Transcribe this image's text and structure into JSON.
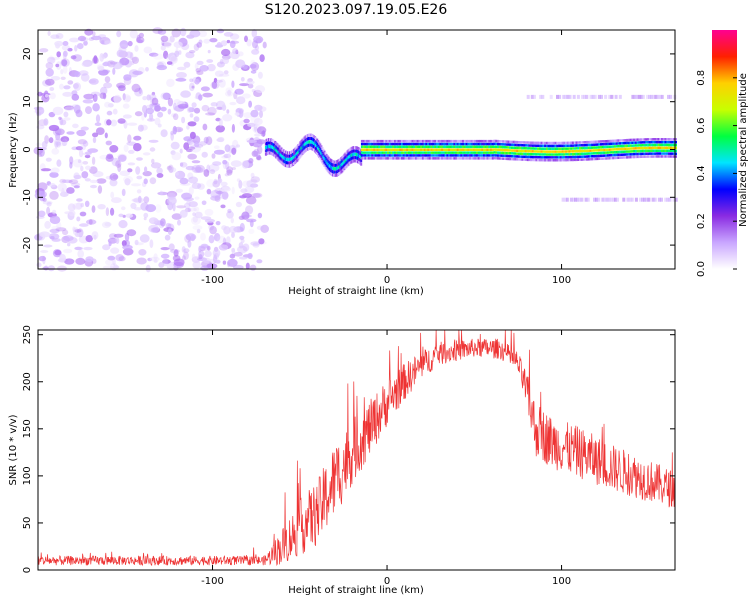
{
  "title": "S120.2023.097.19.05.E26",
  "chart_data": [
    {
      "type": "heatmap",
      "xlabel": "Height of straight line (km)",
      "ylabel": "Frequency (Hz)",
      "xlim": [
        -200,
        165
      ],
      "ylim": [
        -25,
        25
      ],
      "x_ticks": [
        -100,
        0,
        100
      ],
      "y_ticks": [
        -20,
        -10,
        0,
        10,
        20
      ],
      "colorbar": {
        "label": "Normalized spectral amplitude",
        "range": [
          0,
          1
        ],
        "ticks": [
          "0.0",
          "0.2",
          "0.4",
          "0.6",
          "0.8"
        ],
        "colormap": [
          "#ffffff",
          "#c9a6ff",
          "#8a2be2",
          "#0000ff",
          "#00e5ff",
          "#00ff40",
          "#c8ff00",
          "#ffd000",
          "#ff2000",
          "#ff0090"
        ]
      },
      "regions": [
        {
          "name": "noise",
          "x_range": [
            -200,
            -70
          ],
          "y_range": [
            -25,
            25
          ],
          "amplitude": 0.1
        },
        {
          "name": "signal-transition",
          "x_range": [
            -70,
            -15
          ],
          "freq_center": -1.5,
          "amplitude": 0.45
        },
        {
          "name": "signal-line",
          "x_range": [
            -15,
            165
          ],
          "freq_center": 0,
          "amplitude": 0.75
        },
        {
          "name": "harmonic-upper",
          "x_range": [
            80,
            165
          ],
          "freq_center": 11,
          "amplitude": 0.1
        },
        {
          "name": "harmonic-lower",
          "x_range": [
            100,
            165
          ],
          "freq_center": -10.5,
          "amplitude": 0.1
        }
      ]
    },
    {
      "type": "line",
      "xlabel": "Height of straight line (km)",
      "ylabel": "SNR (10 * v/v)",
      "xlim": [
        -200,
        165
      ],
      "ylim": [
        0,
        255
      ],
      "x_ticks": [
        -100,
        0,
        100
      ],
      "y_ticks": [
        0,
        50,
        100,
        150,
        200,
        250
      ],
      "color": "#ee3333",
      "envelope": [
        {
          "x": -200,
          "mean": 10,
          "spread": 10
        },
        {
          "x": -70,
          "mean": 10,
          "spread": 10
        },
        {
          "x": -60,
          "mean": 25,
          "spread": 40
        },
        {
          "x": -50,
          "mean": 45,
          "spread": 60
        },
        {
          "x": -40,
          "mean": 60,
          "spread": 70
        },
        {
          "x": -30,
          "mean": 95,
          "spread": 80
        },
        {
          "x": -20,
          "mean": 125,
          "spread": 70
        },
        {
          "x": -10,
          "mean": 150,
          "spread": 60
        },
        {
          "x": 0,
          "mean": 178,
          "spread": 50
        },
        {
          "x": 10,
          "mean": 200,
          "spread": 40
        },
        {
          "x": 20,
          "mean": 218,
          "spread": 30
        },
        {
          "x": 30,
          "mean": 230,
          "spread": 25
        },
        {
          "x": 50,
          "mean": 236,
          "spread": 20
        },
        {
          "x": 65,
          "mean": 235,
          "spread": 22
        },
        {
          "x": 75,
          "mean": 220,
          "spread": 25
        },
        {
          "x": 80,
          "mean": 190,
          "spread": 40
        },
        {
          "x": 85,
          "mean": 150,
          "spread": 60
        },
        {
          "x": 95,
          "mean": 135,
          "spread": 55
        },
        {
          "x": 110,
          "mean": 125,
          "spread": 55
        },
        {
          "x": 130,
          "mean": 108,
          "spread": 50
        },
        {
          "x": 150,
          "mean": 95,
          "spread": 45
        },
        {
          "x": 165,
          "mean": 85,
          "spread": 40
        }
      ]
    }
  ]
}
